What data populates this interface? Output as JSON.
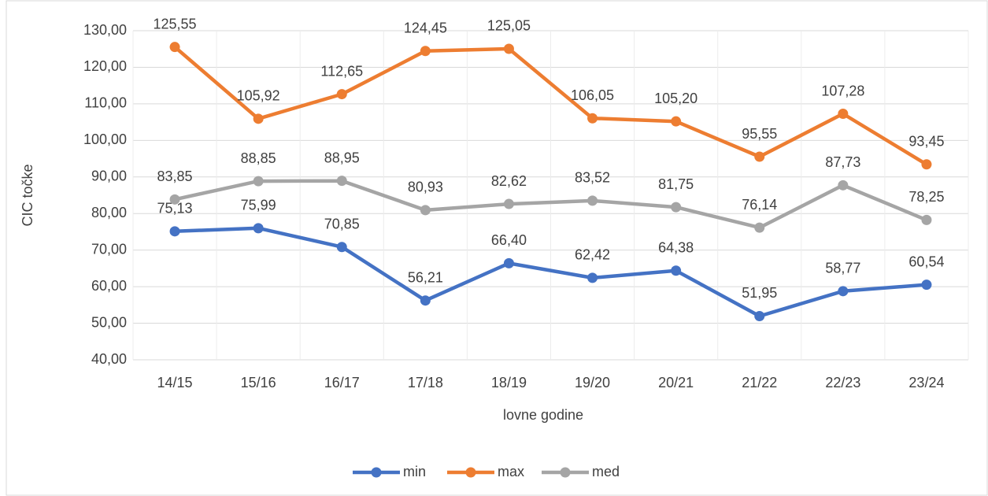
{
  "chart_data": {
    "type": "line",
    "x_label": "lovne godine",
    "y_label": "CIC točke",
    "categories": [
      "14/15",
      "15/16",
      "16/17",
      "17/18",
      "18/19",
      "19/20",
      "20/21",
      "21/22",
      "22/23",
      "23/24"
    ],
    "series": [
      {
        "name": "min",
        "color": "#4472c4",
        "values": [
          75.13,
          75.99,
          70.85,
          56.21,
          66.4,
          62.42,
          64.38,
          51.95,
          58.77,
          60.54
        ],
        "value_labels": [
          "75,13",
          "75,99",
          "70,85",
          "56,21",
          "66,40",
          "62,42",
          "64,38",
          "51,95",
          "58,77",
          "60,54"
        ]
      },
      {
        "name": "max",
        "color": "#ed7d31",
        "values": [
          125.55,
          105.92,
          112.65,
          124.45,
          125.05,
          106.05,
          105.2,
          95.55,
          107.28,
          93.45
        ],
        "value_labels": [
          "125,55",
          "105,92",
          "112,65",
          "124,45",
          "125,05",
          "106,05",
          "105,20",
          "95,55",
          "107,28",
          "93,45"
        ]
      },
      {
        "name": "med",
        "color": "#a5a5a5",
        "values": [
          83.85,
          88.85,
          88.95,
          80.93,
          82.62,
          83.52,
          81.75,
          76.14,
          87.73,
          78.25
        ],
        "value_labels": [
          "83,85",
          "88,85",
          "88,95",
          "80,93",
          "82,62",
          "83,52",
          "81,75",
          "76,14",
          "87,73",
          "78,25"
        ]
      }
    ],
    "ylim": [
      40,
      130
    ],
    "yticks": [
      {
        "value": 40,
        "label": "40,00"
      },
      {
        "value": 50,
        "label": "50,00"
      },
      {
        "value": 60,
        "label": "60,00"
      },
      {
        "value": 70,
        "label": "70,00"
      },
      {
        "value": 80,
        "label": "80,00"
      },
      {
        "value": 90,
        "label": "90,00"
      },
      {
        "value": 100,
        "label": "100,00"
      },
      {
        "value": 110,
        "label": "110,00"
      },
      {
        "value": 120,
        "label": "120,00"
      },
      {
        "value": 130,
        "label": "130,00"
      }
    ],
    "grid": true,
    "legend": "bottom"
  }
}
